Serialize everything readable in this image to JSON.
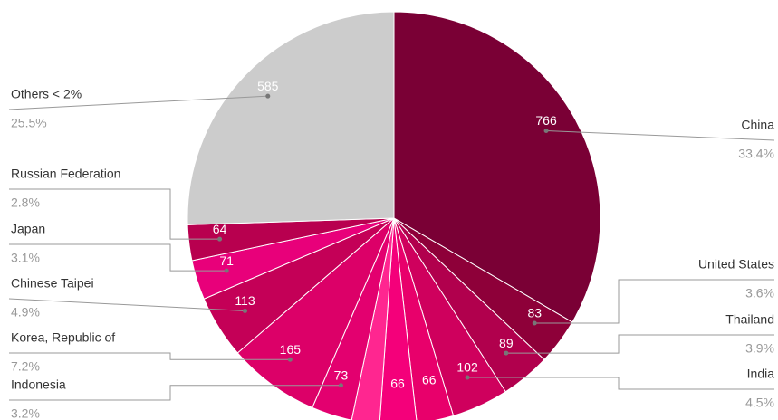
{
  "chart_data": {
    "type": "pie",
    "categories": [
      "China",
      "United States",
      "Thailand",
      "India",
      null,
      null,
      null,
      "Indonesia",
      "Korea, Republic of",
      "Chinese Taipei",
      "Japan",
      "Russian Federation",
      "Others < 2%"
    ],
    "values": [
      766,
      83,
      89,
      102,
      66,
      66,
      50,
      73,
      165,
      113,
      71,
      64,
      585
    ],
    "percent_labels": [
      "33.4%",
      "3.6%",
      "3.9%",
      "4.5%",
      null,
      null,
      null,
      "3.2%",
      "7.2%",
      "4.9%",
      "3.1%",
      "2.8%",
      "25.5%"
    ],
    "colors": [
      "#7a0035",
      "#8e0039",
      "#b1004d",
      "#cf005d",
      "#e8006b",
      "#f4007a",
      "#ff2690",
      "#e3006f",
      "#dc0068",
      "#c40057",
      "#e8007a",
      "#b8004f",
      "#cccccc"
    ]
  }
}
